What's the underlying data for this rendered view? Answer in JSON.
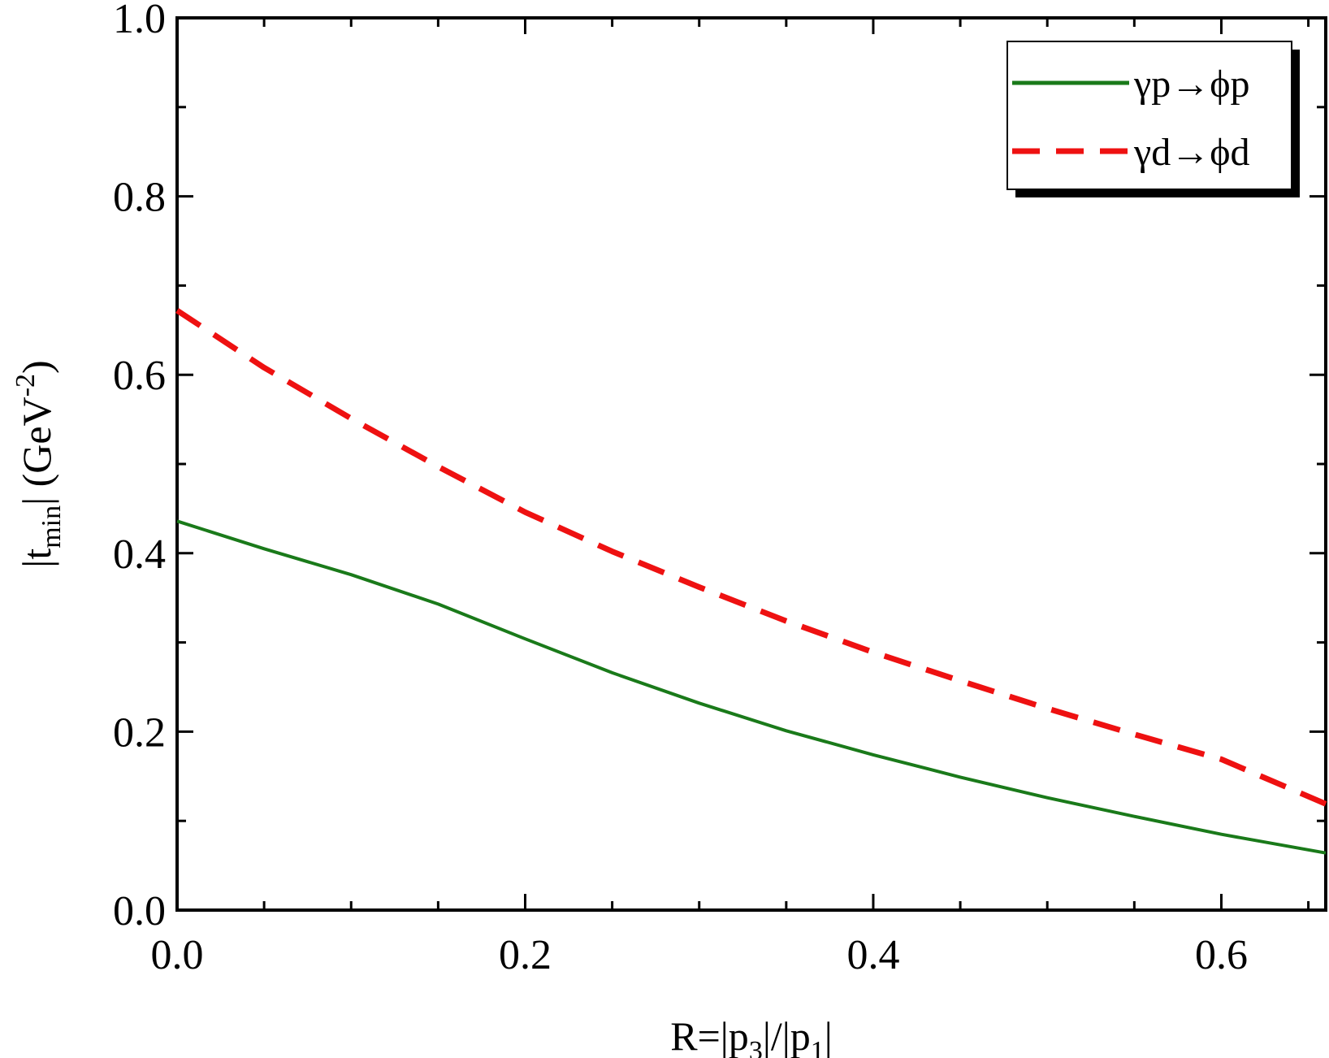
{
  "chart_data": {
    "type": "line",
    "xlabel": {
      "main": "R=|p",
      "sub1": "3",
      "mid": "|/|p",
      "sub2": "1",
      "end": "|"
    },
    "ylabel": {
      "main": "|t",
      "sub": "min",
      "mid": "| (GeV",
      "sup": "-2",
      "end": ")"
    },
    "xlim": [
      0,
      0.66
    ],
    "ylim": [
      0,
      1.0
    ],
    "xticks": [
      0.0,
      0.2,
      0.4,
      0.6
    ],
    "xtick_labels": [
      "0.0",
      "0.2",
      "0.4",
      "0.6"
    ],
    "yticks": [
      0.0,
      0.2,
      0.4,
      0.6,
      0.8,
      1.0
    ],
    "ytick_labels": [
      "0.0",
      "0.2",
      "0.4",
      "0.6",
      "0.8",
      "1.0"
    ],
    "x_minor_step": 0.05,
    "y_minor_step": 0.1,
    "legend_position": "top-right",
    "series": [
      {
        "name": "γp→ϕp",
        "color": "#1a7a1a",
        "style": "solid",
        "x": [
          0.0,
          0.05,
          0.1,
          0.15,
          0.2,
          0.25,
          0.3,
          0.35,
          0.4,
          0.45,
          0.5,
          0.55,
          0.6,
          0.66
        ],
        "y": [
          0.436,
          0.405,
          0.376,
          0.343,
          0.304,
          0.266,
          0.232,
          0.201,
          0.174,
          0.149,
          0.126,
          0.105,
          0.085,
          0.064
        ]
      },
      {
        "name": "γd→ϕd",
        "color": "#ee1111",
        "style": "dashed",
        "x": [
          0.0,
          0.05,
          0.1,
          0.15,
          0.2,
          0.25,
          0.3,
          0.35,
          0.4,
          0.45,
          0.5,
          0.55,
          0.6,
          0.66
        ],
        "y": [
          0.672,
          0.608,
          0.551,
          0.497,
          0.446,
          0.402,
          0.362,
          0.324,
          0.289,
          0.257,
          0.226,
          0.197,
          0.169,
          0.119
        ]
      }
    ]
  }
}
